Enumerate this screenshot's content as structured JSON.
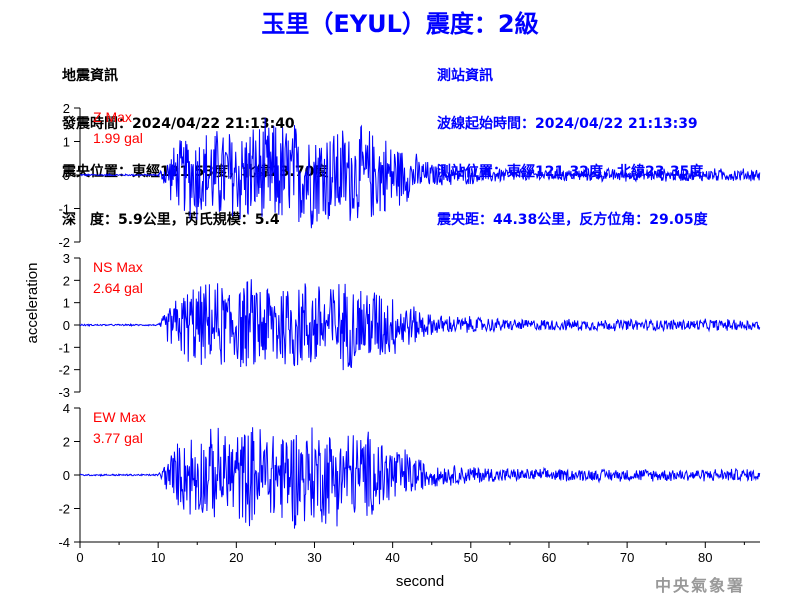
{
  "title": "玉里（EYUL）震度：2級",
  "event_info": {
    "heading": "地震資訊",
    "origin_time": "發震時間：2024/04/22 21:13:40",
    "epicenter": "震央位置：東經121.53度，北緯23.70度",
    "depth_magnitude": "深　度：5.9公里，芮氏規模：5.4"
  },
  "station_info": {
    "heading": "測站資訊",
    "wave_start": "波線起始時間：2024/04/22 21:13:39",
    "station_location": "測站位置：東經121.32度，北緯23.35度",
    "distance_azimuth": "震央距：44.38公里，反方位角：29.05度"
  },
  "watermark": "中央氣象署",
  "colors": {
    "title": "#0000ff",
    "trace": "#0000ff",
    "max_label": "#ff0000",
    "axes": "#000000"
  },
  "chart_data": {
    "type": "line",
    "xlabel": "second",
    "ylabel": "acceleration",
    "xlim": [
      0,
      87
    ],
    "xticks": [
      0,
      10,
      20,
      30,
      40,
      50,
      60,
      70,
      80
    ],
    "panels": [
      {
        "component": "Z",
        "max_label": "Z Max",
        "max_value": "1.99 gal",
        "ylim": [
          -2,
          2
        ],
        "yticks": [
          -2,
          -1,
          0,
          1,
          2
        ]
      },
      {
        "component": "NS",
        "max_label": "NS Max",
        "max_value": "2.64 gal",
        "ylim": [
          -3,
          3
        ],
        "yticks": [
          -3,
          -2,
          -1,
          0,
          1,
          2,
          3
        ]
      },
      {
        "component": "EW",
        "max_label": "EW Max",
        "max_value": "3.77 gal",
        "ylim": [
          -4,
          4
        ],
        "yticks": [
          -4,
          -2,
          0,
          2,
          4
        ]
      }
    ]
  }
}
